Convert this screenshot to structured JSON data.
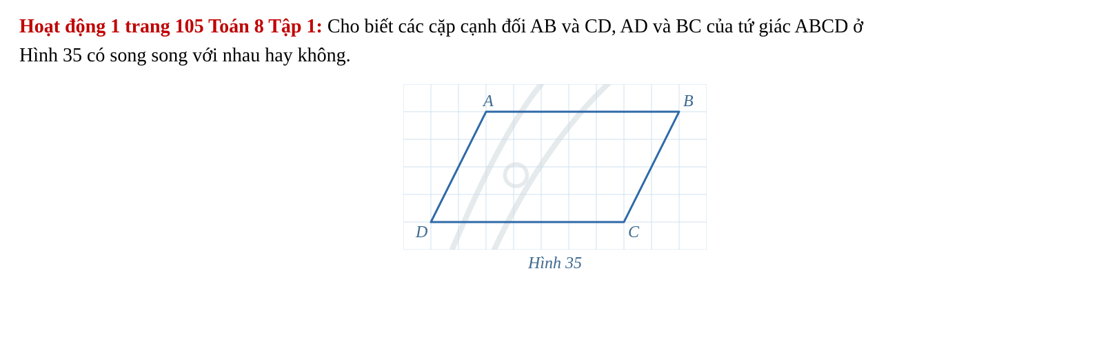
{
  "problem": {
    "heading_text": "Hoạt động 1 trang 105 Toán 8 Tập 1:",
    "heading_color": "#c00000",
    "body_text_1": " Cho biết các cặp cạnh đối AB và CD, AD và BC của tứ giác ABCD ở",
    "body_text_2": "Hình 35 có song song với nhau hay không.",
    "body_color": "#000000"
  },
  "figure": {
    "type": "diagram",
    "caption": "Hình 35",
    "caption_color": "#3e6a8f",
    "caption_fontsize": 24,
    "grid": {
      "cols": 11,
      "rows": 6,
      "cell": 40,
      "line_color": "#cfe0ef",
      "line_width": 1,
      "background": "#ffffff"
    },
    "watermark": {
      "stroke": "#d0d8df",
      "stroke_width": 8,
      "opacity": 0.55
    },
    "shape": {
      "stroke": "#2f6aa8",
      "stroke_width": 3,
      "fill": "none",
      "points": {
        "A": {
          "gx": 3,
          "gy": 1,
          "label": "A",
          "label_dx": -4,
          "label_dy": -8
        },
        "B": {
          "gx": 10,
          "gy": 1,
          "label": "B",
          "label_dx": 6,
          "label_dy": -8
        },
        "C": {
          "gx": 8,
          "gy": 5,
          "label": "C",
          "label_dx": 6,
          "label_dy": 22
        },
        "D": {
          "gx": 1,
          "gy": 5,
          "label": "D",
          "label_dx": -22,
          "label_dy": 22
        }
      },
      "label_color": "#3e6a8f",
      "label_fontsize": 24,
      "label_font_style": "italic"
    }
  }
}
